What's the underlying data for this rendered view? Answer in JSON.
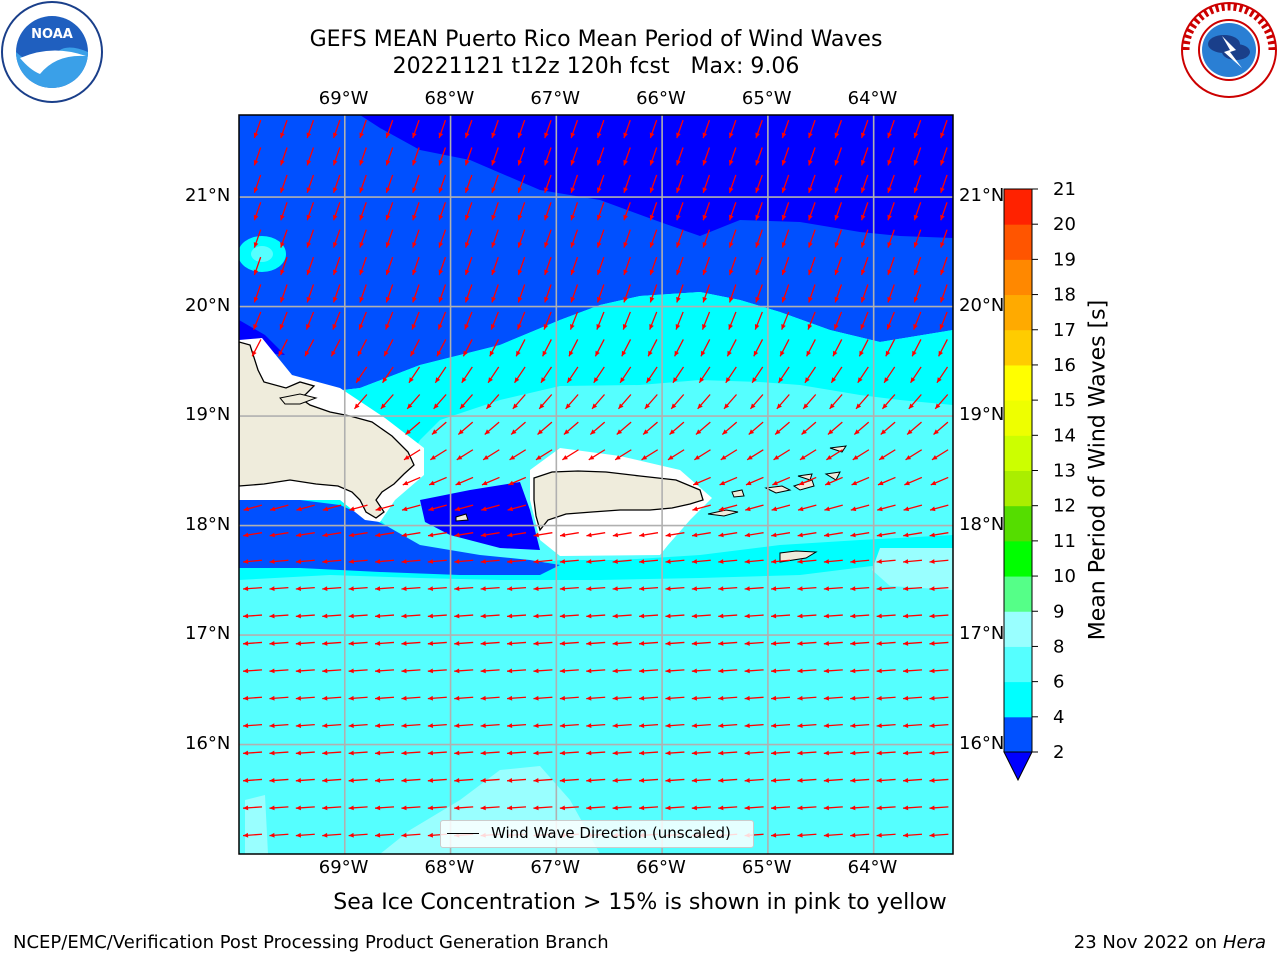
{
  "title": {
    "line1": "GEFS MEAN Puerto Rico Mean Period of Wind Waves",
    "line2": "20221121 t12z 120h fcst   Max: 9.06"
  },
  "logos": {
    "left": "noaa-logo",
    "left_text": "NOAA",
    "right": "national-weather-service-logo",
    "right_text": "NATIONAL WEATHER SERVICE"
  },
  "map": {
    "lon_labels": [
      "69°W",
      "68°W",
      "67°W",
      "66°W",
      "65°W",
      "64°W"
    ],
    "lat_labels": [
      "21°N",
      "20°N",
      "19°N",
      "18°N",
      "17°N",
      "16°N"
    ],
    "lon_range": [
      -70.0,
      -63.25
    ],
    "lat_range": [
      15.0,
      21.75
    ],
    "land_color": "#efecdc",
    "arrow_color": "#ff0000",
    "grid": true
  },
  "legend": {
    "label": "Wind Wave Direction (unscaled)"
  },
  "colorbar": {
    "label": "Mean Period of Wind Waves [s]",
    "ticks": [
      "2",
      "4",
      "6",
      "8",
      "9",
      "10",
      "11",
      "12",
      "13",
      "14",
      "15",
      "16",
      "17",
      "18",
      "19",
      "20",
      "21"
    ],
    "colors": [
      "#0050ff",
      "#00ffff",
      "#55ffff",
      "#99ffff",
      "#55ff88",
      "#00ff00",
      "#55dd00",
      "#aaee00",
      "#ccff00",
      "#eeff00",
      "#ffff00",
      "#ffcc00",
      "#ffaa00",
      "#ff8800",
      "#ff5500",
      "#ff2200"
    ],
    "under_color": "#0000ff",
    "extend": "min"
  },
  "ice_note": "Sea Ice Concentration > 15% is shown in pink to yellow",
  "footer": {
    "left": "NCEP/EMC/Verification Post Processing Product Generation Branch",
    "right_date": "23 Nov 2022 on",
    "right_host": "Hera"
  }
}
